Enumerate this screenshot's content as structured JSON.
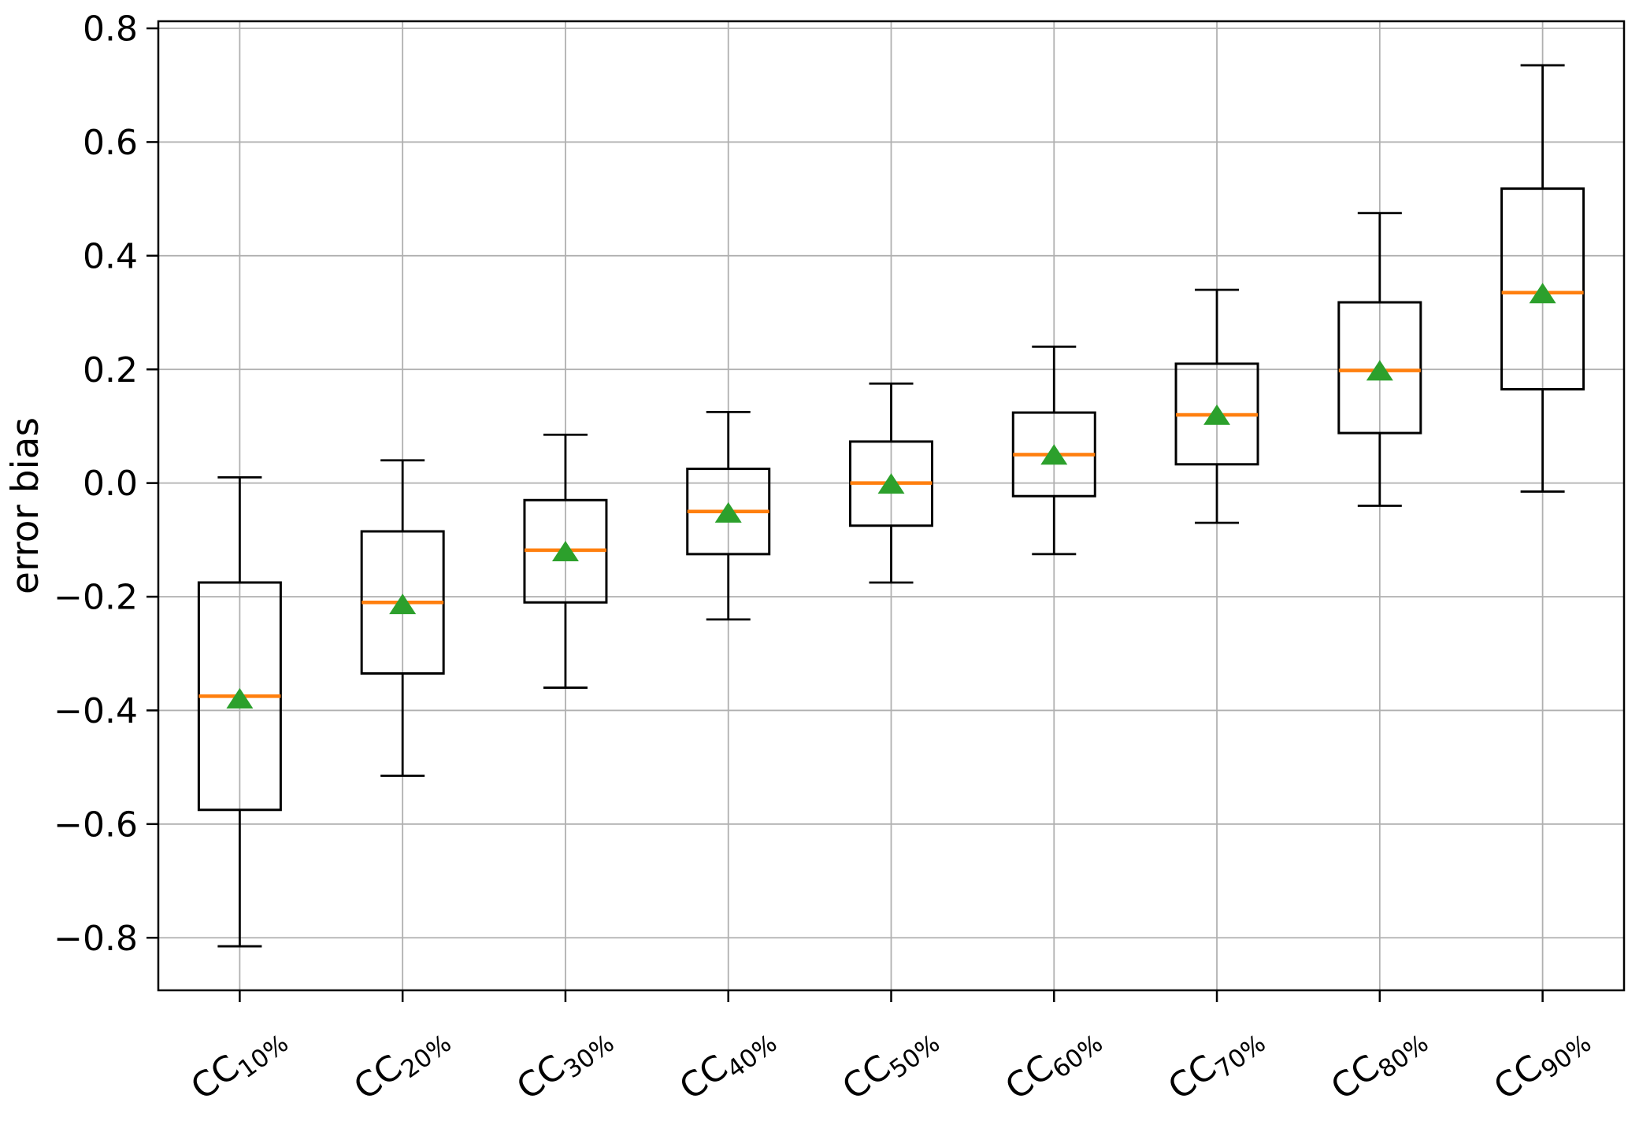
{
  "figure": {
    "background": "#ffffff"
  },
  "chart_data": {
    "type": "box",
    "title": "",
    "xlabel": "",
    "ylabel": "error bias",
    "grid": true,
    "legend_position": "none",
    "ylim": [
      -0.8925,
      0.8125
    ],
    "ytick_values": [
      0.8,
      0.6,
      0.4,
      0.2,
      0.0,
      -0.2,
      -0.4,
      -0.6,
      -0.8
    ],
    "ytick_labels": [
      "0.8",
      "0.6",
      "0.4",
      "0.2",
      "0.0",
      "−0.2",
      "−0.4",
      "−0.6",
      "−0.8"
    ],
    "categories": [
      "CC10%",
      "CC20%",
      "CC30%",
      "CC40%",
      "CC50%",
      "CC60%",
      "CC70%",
      "CC80%",
      "CC90%"
    ],
    "category_parts": [
      {
        "base": "CC",
        "sub": "10%"
      },
      {
        "base": "CC",
        "sub": "20%"
      },
      {
        "base": "CC",
        "sub": "30%"
      },
      {
        "base": "CC",
        "sub": "40%"
      },
      {
        "base": "CC",
        "sub": "50%"
      },
      {
        "base": "CC",
        "sub": "60%"
      },
      {
        "base": "CC",
        "sub": "70%"
      },
      {
        "base": "CC",
        "sub": "80%"
      },
      {
        "base": "CC",
        "sub": "90%"
      }
    ],
    "x_tick_label_rotation_deg": 36,
    "boxes": [
      {
        "label": "CC10%",
        "whisker_low": -0.815,
        "q1": -0.575,
        "median": -0.375,
        "mean": -0.38,
        "q3": -0.175,
        "whisker_high": 0.01
      },
      {
        "label": "CC20%",
        "whisker_low": -0.515,
        "q1": -0.335,
        "median": -0.21,
        "mean": -0.214,
        "q3": -0.085,
        "whisker_high": 0.04
      },
      {
        "label": "CC30%",
        "whisker_low": -0.36,
        "q1": -0.21,
        "median": -0.118,
        "mean": -0.121,
        "q3": -0.03,
        "whisker_high": 0.085
      },
      {
        "label": "CC40%",
        "whisker_low": -0.24,
        "q1": -0.125,
        "median": -0.05,
        "mean": -0.053,
        "q3": 0.025,
        "whisker_high": 0.125
      },
      {
        "label": "CC50%",
        "whisker_low": -0.175,
        "q1": -0.075,
        "median": 0.0,
        "mean": -0.002,
        "q3": 0.073,
        "whisker_high": 0.175
      },
      {
        "label": "CC60%",
        "whisker_low": -0.125,
        "q1": -0.023,
        "median": 0.05,
        "mean": 0.049,
        "q3": 0.124,
        "whisker_high": 0.24
      },
      {
        "label": "CC70%",
        "whisker_low": -0.07,
        "q1": 0.033,
        "median": 0.12,
        "mean": 0.119,
        "q3": 0.21,
        "whisker_high": 0.34
      },
      {
        "label": "CC80%",
        "whisker_low": -0.04,
        "q1": 0.088,
        "median": 0.198,
        "mean": 0.197,
        "q3": 0.318,
        "whisker_high": 0.475
      },
      {
        "label": "CC90%",
        "whisker_low": -0.015,
        "q1": 0.165,
        "median": 0.335,
        "mean": 0.333,
        "q3": 0.518,
        "whisker_high": 0.735
      }
    ],
    "mean_marker_shape": "triangle-up",
    "colors": {
      "box_edge": "#000000",
      "whisker": "#000000",
      "median": "#ff7f0e",
      "mean_marker": "#2ca02c",
      "grid": "#b0b0b0",
      "axis": "#000000",
      "tick_label": "#000000"
    }
  }
}
